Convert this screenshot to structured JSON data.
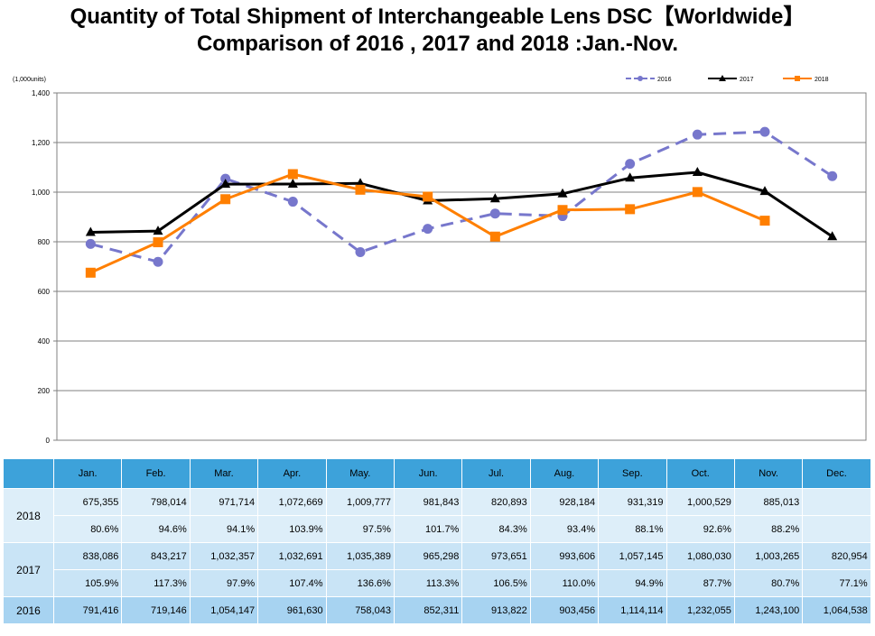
{
  "title_line1": "Quantity of Total Shipment of Interchangeable Lens DSC【Worldwide】",
  "title_line2": "Comparison of 2016 , 2017 and 2018 :Jan.-Nov.",
  "chart_data": {
    "type": "line",
    "ylabel": "(1,000units)",
    "ylim": [
      0,
      1400
    ],
    "yticks": [
      "0",
      "200",
      "400",
      "600",
      "800",
      "1,000",
      "1,200",
      "1,400"
    ],
    "grid": true,
    "legend_position": "top-right",
    "categories": [
      "Jan.",
      "Feb.",
      "Mar.",
      "Apr.",
      "May.",
      "Jun.",
      "Jul.",
      "Aug.",
      "Sep.",
      "Oct.",
      "Nov.",
      "Dec."
    ],
    "series": [
      {
        "name": "2016",
        "color": "#7777cc",
        "style": "dashed",
        "marker": "circle",
        "values": [
          791.416,
          719.146,
          1054.147,
          961.63,
          758.043,
          852.311,
          913.822,
          903.456,
          1114.114,
          1232.055,
          1243.1,
          1064.538
        ]
      },
      {
        "name": "2017",
        "color": "#000000",
        "style": "solid",
        "marker": "triangle",
        "values": [
          838.086,
          843.217,
          1032.357,
          1032.691,
          1035.389,
          965.298,
          973.651,
          993.606,
          1057.145,
          1080.03,
          1003.265,
          820.954
        ]
      },
      {
        "name": "2018",
        "color": "#ff7f00",
        "style": "solid",
        "marker": "square",
        "values": [
          675.355,
          798.014,
          971.714,
          1072.669,
          1009.777,
          981.843,
          820.893,
          928.184,
          931.319,
          1000.529,
          885.013,
          null
        ]
      }
    ]
  },
  "table": {
    "months": [
      "Jan.",
      "Feb.",
      "Mar.",
      "Apr.",
      "May.",
      "Jun.",
      "Jul.",
      "Aug.",
      "Sep.",
      "Oct.",
      "Nov.",
      "Dec."
    ],
    "rows": [
      {
        "year": "2018",
        "units": [
          "675,355",
          "798,014",
          "971,714",
          "1,072,669",
          "1,009,777",
          "981,843",
          "820,893",
          "928,184",
          "931,319",
          "1,000,529",
          "885,013",
          ""
        ],
        "pct": [
          "80.6%",
          "94.6%",
          "94.1%",
          "103.9%",
          "97.5%",
          "101.7%",
          "84.3%",
          "93.4%",
          "88.1%",
          "92.6%",
          "88.2%",
          ""
        ]
      },
      {
        "year": "2017",
        "units": [
          "838,086",
          "843,217",
          "1,032,357",
          "1,032,691",
          "1,035,389",
          "965,298",
          "973,651",
          "993,606",
          "1,057,145",
          "1,080,030",
          "1,003,265",
          "820,954"
        ],
        "pct": [
          "105.9%",
          "117.3%",
          "97.9%",
          "107.4%",
          "136.6%",
          "113.3%",
          "106.5%",
          "110.0%",
          "94.9%",
          "87.7%",
          "80.7%",
          "77.1%"
        ]
      },
      {
        "year": "2016",
        "units": [
          "791,416",
          "719,146",
          "1,054,147",
          "961,630",
          "758,043",
          "852,311",
          "913,822",
          "903,456",
          "1,114,114",
          "1,232,055",
          "1,243,100",
          "1,064,538"
        ]
      }
    ]
  }
}
